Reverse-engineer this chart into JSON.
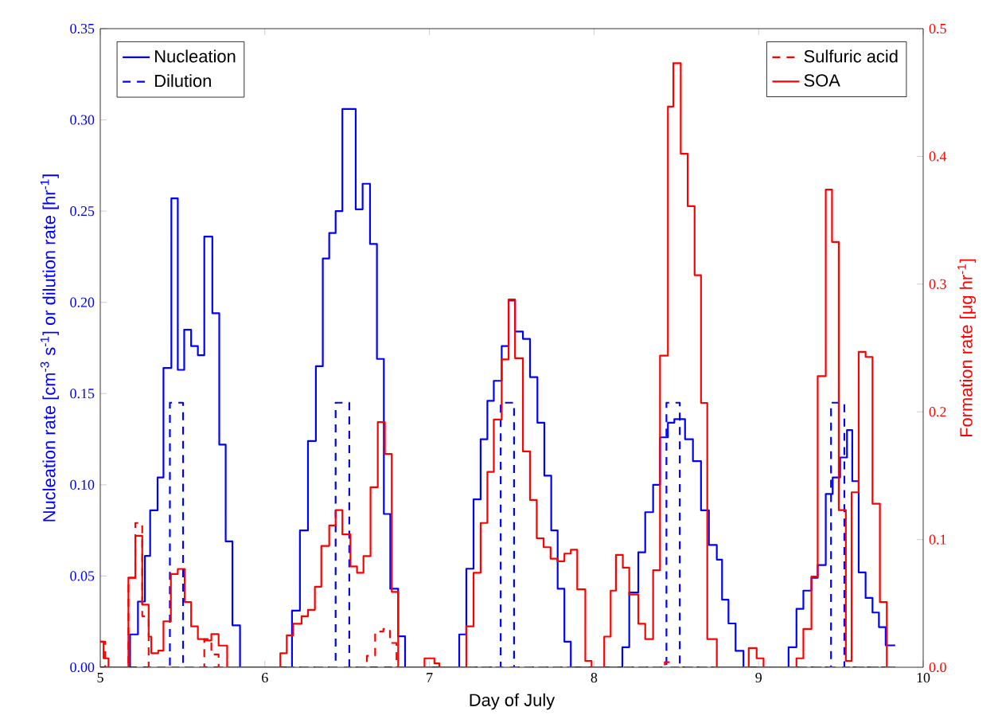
{
  "chart_data": {
    "type": "step",
    "xlabel": "Day of July",
    "ylabel": "Nucleation rate [cm$^{-3}$ s$^{-1}$] or dilution rate [hr$^{-1}$]",
    "y2label": "Formation rate [μg hr$^{-1}$]",
    "xlim": [
      5,
      10
    ],
    "xticks": [
      5,
      6,
      7,
      8,
      9,
      10
    ],
    "ylim": [
      0,
      0.35
    ],
    "yticks": [
      {
        "value": 0,
        "label": "0.00"
      },
      {
        "value": 0.05,
        "label": "0.05"
      },
      {
        "value": 0.1,
        "label": "0.10"
      },
      {
        "value": 0.15,
        "label": "0.15"
      },
      {
        "value": 0.2,
        "label": "0.20"
      },
      {
        "value": 0.25,
        "label": "0.25"
      },
      {
        "value": 0.3,
        "label": "0.30"
      },
      {
        "value": 0.35,
        "label": "0.35"
      }
    ],
    "y2lim": [
      0,
      0.5
    ],
    "y2ticks": [
      {
        "value": 0,
        "label": "0.0"
      },
      {
        "value": 0.1,
        "label": "0.1"
      },
      {
        "value": 0.2,
        "label": "0.2"
      },
      {
        "value": 0.3,
        "label": "0.3"
      },
      {
        "value": 0.4,
        "label": "0.4"
      },
      {
        "value": 0.5,
        "label": "0.5"
      }
    ],
    "legend": "top",
    "grid": false,
    "marker": "none",
    "series": [
      {
        "name": "Nucleation",
        "color": "#0000ff",
        "axis": "y",
        "line_style": "solid",
        "x": [
          5.0,
          5.181,
          5.229,
          5.271,
          5.303,
          5.348,
          5.384,
          5.432,
          5.471,
          5.51,
          5.552,
          5.593,
          5.632,
          5.681,
          5.723,
          5.762,
          5.803,
          5.849,
          6.165,
          6.213,
          6.262,
          6.31,
          6.352,
          6.391,
          6.43,
          6.471,
          6.552,
          6.594,
          6.639,
          6.681,
          6.723,
          6.762,
          6.81,
          6.852,
          7.181,
          7.224,
          7.268,
          7.311,
          7.352,
          7.391,
          7.439,
          7.481,
          7.52,
          7.568,
          7.611,
          7.656,
          7.698,
          7.74,
          7.779,
          7.82,
          7.859,
          8.172,
          8.214,
          8.269,
          8.311,
          8.359,
          8.401,
          8.449,
          8.488,
          8.553,
          8.601,
          8.65,
          8.698,
          8.746,
          8.778,
          8.817,
          8.86,
          8.908,
          9.182,
          9.23,
          9.272,
          9.321,
          9.359,
          9.408,
          9.45,
          9.495,
          9.537,
          9.569,
          9.608,
          9.65,
          9.692,
          9.731,
          9.772,
          9.83
        ],
        "values": [
          0,
          0.018,
          0.036,
          0.061,
          0.086,
          0.104,
          0.164,
          0.257,
          0.163,
          0.185,
          0.176,
          0.171,
          0.236,
          0.194,
          0.122,
          0.069,
          0.023,
          0,
          0.031,
          0.075,
          0.124,
          0.165,
          0.224,
          0.238,
          0.25,
          0.306,
          0.251,
          0.265,
          0.232,
          0.169,
          0.084,
          0.043,
          0.017,
          0,
          0.018,
          0.054,
          0.092,
          0.125,
          0.146,
          0.157,
          0.176,
          0.201,
          0.184,
          0.18,
          0.159,
          0.134,
          0.105,
          0.075,
          0.043,
          0.014,
          0,
          0.011,
          0.041,
          0.063,
          0.085,
          0.1,
          0.126,
          0.134,
          0.136,
          0.125,
          0.113,
          0.086,
          0.067,
          0.059,
          0.037,
          0.024,
          0.009,
          0,
          0.011,
          0.032,
          0.042,
          0.049,
          0.056,
          0.095,
          0.104,
          0.115,
          0.13,
          0.102,
          0.052,
          0.038,
          0.03,
          0.022,
          0.012,
          0.012
        ]
      },
      {
        "name": "Dilution",
        "color": "#0000ff",
        "axis": "y",
        "line_style": "dashed",
        "x": [
          5.0,
          5.423,
          5.503,
          6.43,
          6.513,
          7.433,
          7.514,
          8.44,
          8.521,
          9.44,
          9.521,
          9.83
        ],
        "values": [
          0,
          0.145,
          0,
          0.145,
          0,
          0.145,
          0,
          0.145,
          0,
          0.145,
          0,
          0
        ]
      },
      {
        "name": "Sulfuric acid",
        "color": "#ff0000",
        "axis": "y2",
        "line_style": "dashed",
        "x": [
          5.0,
          5.03,
          5.171,
          5.213,
          5.255,
          5.294,
          5.632,
          5.675,
          5.719,
          6.62,
          6.67,
          6.72,
          6.76,
          6.8,
          8.43,
          8.47,
          9.83
        ],
        "values": [
          0.02,
          0,
          0.07,
          0.113,
          0.04,
          0,
          0.022,
          0.01,
          0,
          0.009,
          0.028,
          0.03,
          0.019,
          0,
          0.004,
          0,
          0
        ]
      },
      {
        "name": "SOA",
        "color": "#ff0000",
        "axis": "y2",
        "line_style": "solid",
        "x": [
          5.0,
          5.02,
          5.05,
          5.171,
          5.213,
          5.255,
          5.294,
          5.31,
          5.352,
          5.384,
          5.429,
          5.471,
          5.513,
          5.552,
          5.593,
          5.632,
          5.675,
          5.719,
          5.771,
          6.094,
          6.133,
          6.172,
          6.223,
          6.262,
          6.304,
          6.343,
          6.391,
          6.43,
          6.471,
          6.52,
          6.56,
          6.599,
          6.642,
          6.686,
          6.729,
          6.771,
          6.81,
          6.97,
          7.03,
          7.06,
          7.224,
          7.268,
          7.311,
          7.352,
          7.391,
          7.439,
          7.481,
          7.52,
          7.568,
          7.611,
          7.652,
          7.694,
          7.736,
          7.777,
          7.82,
          7.859,
          7.898,
          7.947,
          7.985,
          8.062,
          8.101,
          8.133,
          8.175,
          8.214,
          8.269,
          8.311,
          8.359,
          8.401,
          8.449,
          8.482,
          8.527,
          8.569,
          8.611,
          8.65,
          8.688,
          8.746,
          8.94,
          8.988,
          9.03,
          9.23,
          9.272,
          9.321,
          9.359,
          9.408,
          9.446,
          9.487,
          9.53,
          9.565,
          9.608,
          9.65,
          9.692,
          9.737,
          9.779,
          9.83
        ],
        "values": [
          0.02,
          0.007,
          0,
          0.07,
          0.103,
          0.049,
          0.024,
          0.011,
          0.013,
          0.036,
          0.073,
          0.077,
          0.051,
          0.032,
          0.022,
          0.021,
          0.026,
          0.017,
          0,
          0.011,
          0.025,
          0.034,
          0.04,
          0.045,
          0.063,
          0.095,
          0.111,
          0.123,
          0.104,
          0.079,
          0.074,
          0.087,
          0.141,
          0.192,
          0.167,
          0.059,
          0,
          0.007,
          0.003,
          0,
          0.032,
          0.074,
          0.113,
          0.153,
          0.194,
          0.241,
          0.288,
          0.242,
          0.169,
          0.131,
          0.101,
          0.094,
          0.085,
          0.083,
          0.089,
          0.092,
          0.061,
          0.005,
          0,
          0.024,
          0.06,
          0.088,
          0.078,
          0.057,
          0.034,
          0.022,
          0.076,
          0.244,
          0.439,
          0.473,
          0.402,
          0.361,
          0.307,
          0.207,
          0.022,
          0,
          0.015,
          0.007,
          0,
          0.007,
          0.03,
          0.071,
          0.228,
          0.374,
          0.333,
          0.123,
          0.005,
          0.137,
          0.247,
          0.243,
          0.128,
          0.051,
          0,
          0
        ]
      }
    ]
  }
}
